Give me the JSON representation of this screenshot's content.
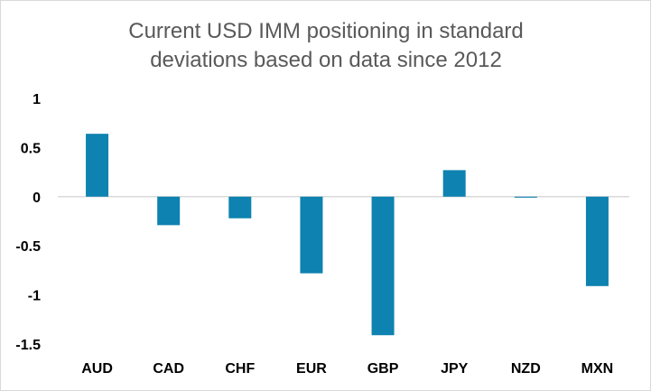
{
  "chart_data": {
    "type": "bar",
    "title_lines": [
      "Current USD IMM positioning in standard",
      "deviations based on data since 2012"
    ],
    "categories": [
      "AUD",
      "CAD",
      "CHF",
      "EUR",
      "GBP",
      "JPY",
      "NZD",
      "MXN"
    ],
    "values": [
      0.64,
      -0.29,
      -0.22,
      -0.78,
      -1.41,
      0.27,
      -0.01,
      -0.91
    ],
    "ylim": [
      -1.5,
      1
    ],
    "yticks": [
      "1",
      "0.5",
      "0",
      "-0.5",
      "-1",
      "-1.5"
    ],
    "ytick_values": [
      1,
      0.5,
      0,
      -0.5,
      -1,
      -1.5
    ],
    "bar_color": "#0e82b0",
    "axis_color": "#d9d9d9",
    "grid": false,
    "legend": "none"
  }
}
